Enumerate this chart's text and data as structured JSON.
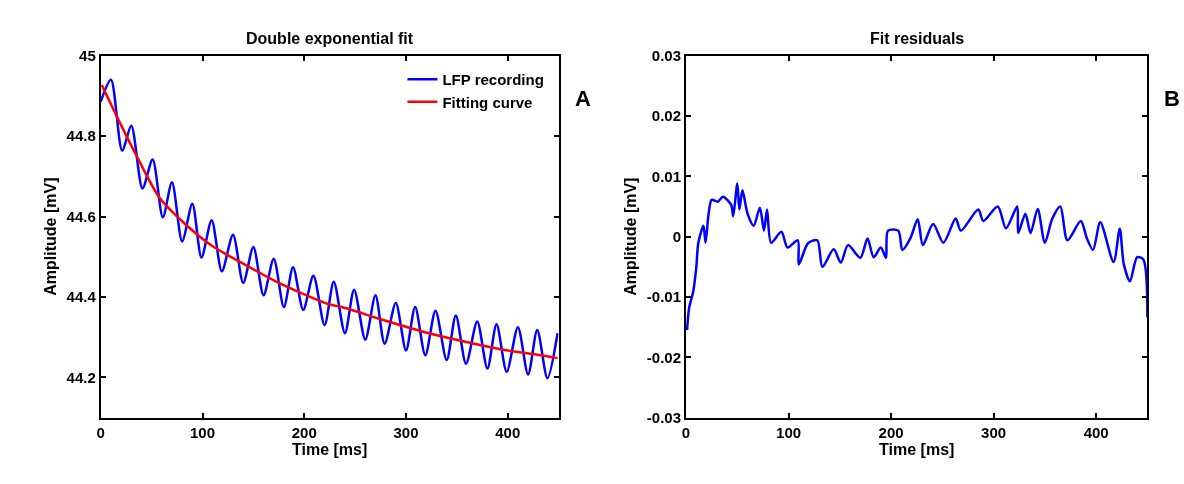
{
  "chart_data": [
    {
      "type": "line",
      "title": "Double exponential fit",
      "xlabel": "Time [ms]",
      "ylabel": "Amplitude [mV]",
      "xlim": [
        0,
        450
      ],
      "xticks": [
        0,
        100,
        200,
        300,
        400
      ],
      "ylim": [
        44.1,
        45
      ],
      "yticks": [
        44.2,
        44.4,
        44.6,
        44.8,
        45
      ],
      "legend": "top right",
      "annotations": [
        "A"
      ],
      "series": [
        {
          "name": "LFP recording",
          "color": "#0000ff",
          "x": [
            0,
            10,
            21,
            30,
            41,
            51,
            61,
            70,
            80,
            90,
            99,
            109,
            119,
            130,
            140,
            150,
            160,
            170,
            180,
            189,
            199,
            209,
            220,
            229,
            240,
            249,
            260,
            270,
            279,
            290,
            300,
            309,
            319,
            329,
            340,
            349,
            359,
            370,
            380,
            389,
            399,
            410,
            420,
            429,
            439,
            449
          ],
          "values": [
            44.886,
            44.94,
            44.764,
            44.826,
            44.67,
            44.742,
            44.598,
            44.685,
            44.538,
            44.632,
            44.498,
            44.591,
            44.464,
            44.555,
            44.435,
            44.524,
            44.404,
            44.495,
            44.375,
            44.474,
            44.368,
            44.453,
            44.33,
            44.438,
            44.31,
            44.418,
            44.294,
            44.404,
            44.284,
            44.385,
            44.267,
            44.375,
            44.255,
            44.366,
            44.243,
            44.354,
            44.234,
            44.339,
            44.222,
            44.332,
            44.214,
            44.325,
            44.207,
            44.318,
            44.198,
            44.31
          ]
        },
        {
          "name": "Fitting curve",
          "color": "#ff0000",
          "x": [
            1,
            16,
            35,
            58,
            84,
            110,
            140,
            175,
            224,
            237,
            276,
            315,
            354,
            393,
            425,
            449
          ],
          "values": [
            44.927,
            44.848,
            44.752,
            44.646,
            44.579,
            44.526,
            44.483,
            44.435,
            44.382,
            44.375,
            44.344,
            44.315,
            44.291,
            44.27,
            44.258,
            44.248
          ]
        }
      ]
    },
    {
      "type": "line",
      "title": "Fit residuals",
      "xlabel": "Time [ms]",
      "ylabel": "Amplitude [mV]",
      "xlim": [
        0,
        450
      ],
      "xticks": [
        0,
        100,
        200,
        300,
        400
      ],
      "ylim": [
        -0.03,
        0.03
      ],
      "yticks": [
        -0.03,
        -0.02,
        -0.01,
        0,
        0.01,
        0.02,
        0.03
      ],
      "legend": false,
      "annotations": [
        "B"
      ],
      "series": [
        {
          "color": "#0000ff",
          "x": [
            1,
            3,
            7,
            10,
            12,
            17,
            19,
            22,
            25,
            31,
            36,
            44,
            46,
            50,
            52,
            55,
            60,
            66,
            72,
            76,
            79,
            83,
            93,
            99,
            109,
            110,
            119,
            128,
            133,
            144,
            151,
            158,
            170,
            177,
            183,
            190,
            195,
            197,
            207,
            211,
            219,
            226,
            231,
            241,
            251,
            263,
            268,
            285,
            290,
            304,
            312,
            323,
            324,
            331,
            336,
            343,
            350,
            357,
            365,
            372,
            385,
            391,
            397,
            404,
            417,
            423,
            427,
            433,
            440,
            446,
            450
          ],
          "values": [
            -0.0155,
            -0.0118,
            -0.0091,
            -0.0051,
            -0.001,
            0.0018,
            -0.001,
            0.0038,
            0.0061,
            0.0058,
            0.0066,
            0.0053,
            0.0034,
            0.0088,
            0.0045,
            0.0077,
            0.0038,
            0.0018,
            0.0048,
            0.001,
            0.0045,
            -0.001,
            0.0008,
            -0.0018,
            -0.0006,
            -0.0046,
            -0.0011,
            -0.0006,
            -0.005,
            -0.0021,
            -0.0043,
            -0.0014,
            -0.0035,
            -0.0003,
            -0.0034,
            -0.0018,
            -0.0035,
            0.001,
            0.001,
            -0.0022,
            -0.0002,
            0.0029,
            -0.0014,
            0.0021,
            -0.001,
            0.003,
            0.001,
            0.0045,
            0.0026,
            0.005,
            0.0014,
            0.005,
            0.0006,
            0.0038,
            0.0006,
            0.0046,
            -0.001,
            0.0029,
            0.005,
            -0.0006,
            0.0026,
            -0.0003,
            -0.0022,
            0.0024,
            -0.0042,
            0.0013,
            -0.0046,
            -0.0074,
            -0.0034,
            -0.0038,
            -0.0134
          ]
        }
      ]
    }
  ]
}
